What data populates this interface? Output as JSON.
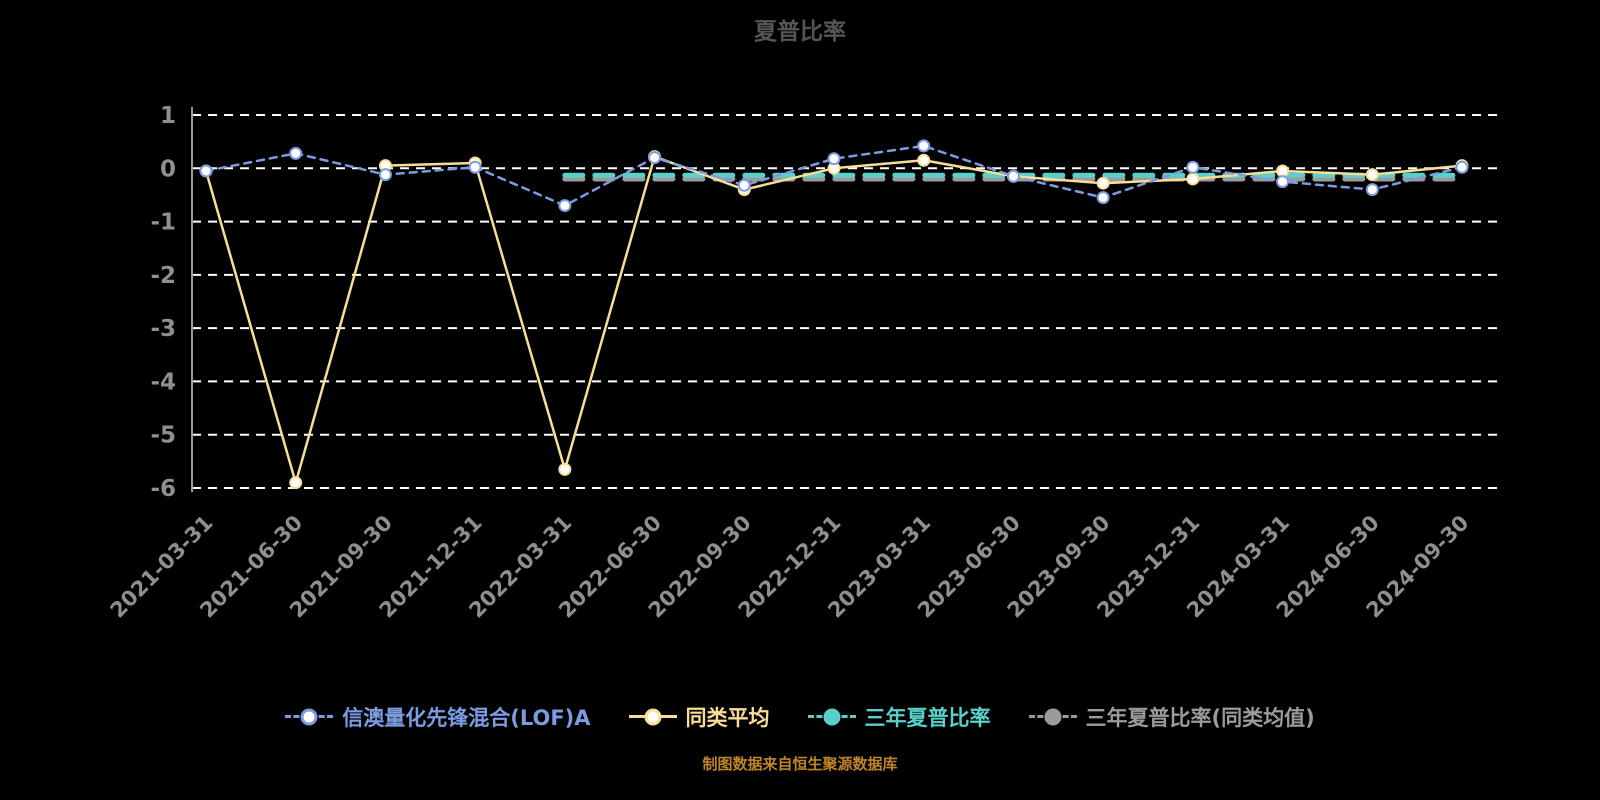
{
  "chart_data": {
    "type": "line",
    "title": "夏普比率",
    "source": "制图数据来自恒生聚源数据库",
    "ylim": [
      -6,
      1
    ],
    "yticks": [
      1,
      0,
      -1,
      -2,
      -3,
      -4,
      -5,
      -6
    ],
    "grid": true,
    "legend_position": "bottom",
    "categories": [
      "2021-03-31",
      "2021-06-30",
      "2021-09-30",
      "2021-12-31",
      "2022-03-31",
      "2022-06-30",
      "2022-09-30",
      "2022-12-31",
      "2023-03-31",
      "2023-06-30",
      "2023-09-30",
      "2023-12-31",
      "2024-03-31",
      "2024-06-30",
      "2024-09-30"
    ],
    "series": [
      {
        "name": "信澳量化先锋混合(LOF)A",
        "color": "#7b9ce1",
        "line": "dashed",
        "width": 2.5,
        "marker": true,
        "marker_fill": "#ffffff",
        "values": [
          -0.05,
          0.28,
          -0.12,
          0.02,
          -0.7,
          0.2,
          -0.32,
          0.18,
          0.42,
          -0.15,
          -0.55,
          0.02,
          -0.25,
          -0.4,
          0.02
        ]
      },
      {
        "name": "同类平均",
        "color": "#f7dd96",
        "line": "solid",
        "width": 2.5,
        "marker": true,
        "marker_fill": "#ffffff",
        "values": [
          -0.05,
          -5.9,
          0.05,
          0.1,
          -5.65,
          0.22,
          -0.4,
          0.0,
          0.15,
          -0.15,
          -0.28,
          -0.2,
          -0.05,
          -0.12,
          0.05
        ]
      },
      {
        "name": "三年夏普比率",
        "color": "#5ad0ca",
        "line": "dashed",
        "width": 5,
        "marker": false,
        "values": [
          null,
          null,
          null,
          null,
          -0.13,
          -0.13,
          -0.13,
          -0.13,
          -0.13,
          -0.13,
          -0.13,
          -0.13,
          -0.13,
          -0.13,
          -0.13
        ]
      },
      {
        "name": "三年夏普比率(同类均值)",
        "color": "#9b9b9b",
        "line": "dashed",
        "width": 5,
        "marker": false,
        "values": [
          null,
          null,
          null,
          null,
          -0.2,
          -0.2,
          -0.2,
          -0.2,
          -0.2,
          -0.2,
          -0.2,
          -0.2,
          -0.2,
          -0.2,
          -0.2
        ]
      }
    ]
  }
}
